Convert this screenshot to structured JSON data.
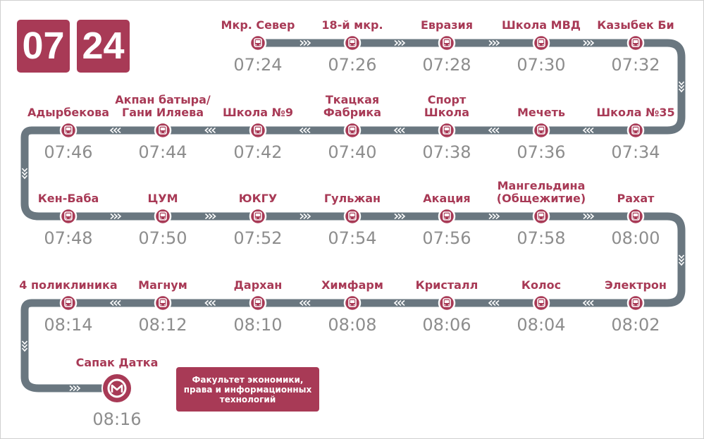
{
  "header": {
    "hours": "07",
    "minutes": "24"
  },
  "stops": [
    {
      "name": "Мкр. Север",
      "time": "07:24"
    },
    {
      "name": "18-й мкр.",
      "time": "07:26"
    },
    {
      "name": "Евразия",
      "time": "07:28"
    },
    {
      "name": "Школа МВД",
      "time": "07:30"
    },
    {
      "name": "Казыбек Би",
      "time": "07:32"
    },
    {
      "name": "Школа №35",
      "time": "07:34"
    },
    {
      "name": "Мечеть",
      "time": "07:36"
    },
    {
      "name": "Спорт\nШкола",
      "time": "07:38"
    },
    {
      "name": "Ткацкая\nФабрика",
      "time": "07:40"
    },
    {
      "name": "Школа №9",
      "time": "07:42"
    },
    {
      "name": "Акпан батыра/\nГани Иляева",
      "time": "07:44"
    },
    {
      "name": "Адырбекова",
      "time": "07:46"
    },
    {
      "name": "Кен-Баба",
      "time": "07:48"
    },
    {
      "name": "ЦУМ",
      "time": "07:50"
    },
    {
      "name": "ЮКГУ",
      "time": "07:52"
    },
    {
      "name": "Гульжан",
      "time": "07:54"
    },
    {
      "name": "Акация",
      "time": "07:56"
    },
    {
      "name": "Мангельдина\n(Общежитие)",
      "time": "07:58"
    },
    {
      "name": "Рахат",
      "time": "08:00"
    },
    {
      "name": "Электрон",
      "time": "08:02"
    },
    {
      "name": "Колос",
      "time": "08:04"
    },
    {
      "name": "Кристалл",
      "time": "08:06"
    },
    {
      "name": "Химфарм",
      "time": "08:08"
    },
    {
      "name": "Дархан",
      "time": "08:10"
    },
    {
      "name": "Магнум",
      "time": "08:12"
    },
    {
      "name": "4 поликлиника",
      "time": "08:14"
    }
  ],
  "terminal": {
    "name": "Сапак Датка",
    "time": "08:16"
  },
  "faculty_box": {
    "text": "Факультет экономики, права и информационных технологий"
  },
  "colors": {
    "accent": "#a83a56",
    "line": "#6a7780",
    "time_text": "#8d8d8d",
    "arrow": "#ffffff"
  },
  "icons": {
    "stop": "bus-icon",
    "terminal": "terminal-logo-icon"
  }
}
